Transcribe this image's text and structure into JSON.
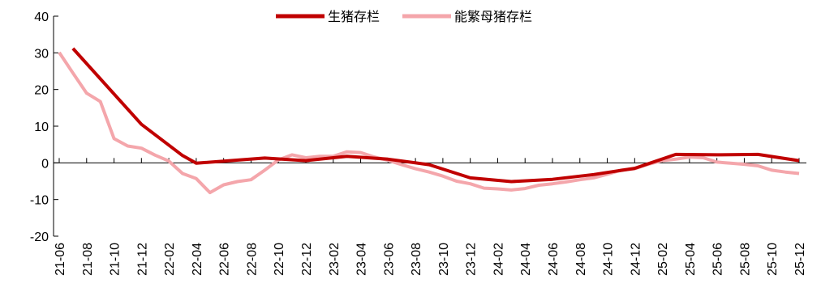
{
  "chart_data": {
    "type": "line",
    "title": "",
    "xlabel": "",
    "ylabel": "",
    "ylim": [
      -20,
      40
    ],
    "yticks": [
      -20,
      -10,
      0,
      10,
      20,
      30,
      40
    ],
    "x_tick_labels": [
      "21-06",
      "21-08",
      "21-10",
      "21-12",
      "22-02",
      "22-04",
      "22-06",
      "22-08",
      "22-10",
      "22-12",
      "23-02",
      "23-04",
      "23-06",
      "23-08",
      "23-10",
      "23-12",
      "24-02",
      "24-04",
      "24-06",
      "24-08",
      "24-10",
      "24-12",
      "25-02",
      "25-04",
      "25-06",
      "25-08",
      "25-10",
      "25-12"
    ],
    "x_start": "21-06",
    "x_end": "25-12",
    "legend_position": "top-center",
    "grid": false,
    "series": [
      {
        "name": "生猪存栏",
        "color": "#c00000",
        "points": [
          {
            "x": "21-07",
            "y": 31.2
          },
          {
            "x": "21-12",
            "y": 10.5
          },
          {
            "x": "22-03",
            "y": 2.0
          },
          {
            "x": "22-04",
            "y": -0.1
          },
          {
            "x": "22-09",
            "y": 1.3
          },
          {
            "x": "22-12",
            "y": 0.6
          },
          {
            "x": "23-03",
            "y": 1.8
          },
          {
            "x": "23-06",
            "y": 1.0
          },
          {
            "x": "23-09",
            "y": -0.5
          },
          {
            "x": "23-12",
            "y": -4.1
          },
          {
            "x": "24-03",
            "y": -5.1
          },
          {
            "x": "24-06",
            "y": -4.5
          },
          {
            "x": "24-09",
            "y": -3.2
          },
          {
            "x": "24-12",
            "y": -1.5
          },
          {
            "x": "25-03",
            "y": 2.3
          },
          {
            "x": "25-06",
            "y": 2.2
          },
          {
            "x": "25-09",
            "y": 2.3
          },
          {
            "x": "25-12",
            "y": 0.6
          }
        ]
      },
      {
        "name": "能繁母猪存栏",
        "color": "#f4a6ab",
        "points": [
          {
            "x": "21-06",
            "y": 30.1
          },
          {
            "x": "21-07",
            "y": 24.5
          },
          {
            "x": "21-08",
            "y": 19.0
          },
          {
            "x": "21-09",
            "y": 16.7
          },
          {
            "x": "21-10",
            "y": 6.6
          },
          {
            "x": "21-11",
            "y": 4.6
          },
          {
            "x": "21-12",
            "y": 4.0
          },
          {
            "x": "22-01",
            "y": 2.1
          },
          {
            "x": "22-02",
            "y": 0.5
          },
          {
            "x": "22-03",
            "y": -2.9
          },
          {
            "x": "22-04",
            "y": -4.3
          },
          {
            "x": "22-05",
            "y": -8.1
          },
          {
            "x": "22-06",
            "y": -6.0
          },
          {
            "x": "22-07",
            "y": -5.1
          },
          {
            "x": "22-08",
            "y": -4.6
          },
          {
            "x": "22-09",
            "y": -2.0
          },
          {
            "x": "22-10",
            "y": 0.8
          },
          {
            "x": "22-11",
            "y": 2.2
          },
          {
            "x": "22-12",
            "y": 1.4
          },
          {
            "x": "23-01",
            "y": 1.8
          },
          {
            "x": "23-02",
            "y": 1.8
          },
          {
            "x": "23-03",
            "y": 3.0
          },
          {
            "x": "23-04",
            "y": 2.8
          },
          {
            "x": "23-05",
            "y": 1.6
          },
          {
            "x": "23-06",
            "y": 0.7
          },
          {
            "x": "23-07",
            "y": -0.5
          },
          {
            "x": "23-08",
            "y": -1.6
          },
          {
            "x": "23-09",
            "y": -2.5
          },
          {
            "x": "23-10",
            "y": -3.6
          },
          {
            "x": "23-11",
            "y": -5.0
          },
          {
            "x": "23-12",
            "y": -5.7
          },
          {
            "x": "24-01",
            "y": -6.9
          },
          {
            "x": "24-02",
            "y": -7.1
          },
          {
            "x": "24-03",
            "y": -7.4
          },
          {
            "x": "24-04",
            "y": -7.0
          },
          {
            "x": "24-05",
            "y": -6.1
          },
          {
            "x": "24-06",
            "y": -5.7
          },
          {
            "x": "24-07",
            "y": -5.2
          },
          {
            "x": "24-08",
            "y": -4.6
          },
          {
            "x": "24-09",
            "y": -4.1
          },
          {
            "x": "24-10",
            "y": -3.1
          },
          {
            "x": "24-11",
            "y": -2.0
          },
          {
            "x": "24-12",
            "y": -1.6
          },
          {
            "x": "25-01",
            "y": -0.4
          },
          {
            "x": "25-02",
            "y": 0.6
          },
          {
            "x": "25-03",
            "y": 1.0
          },
          {
            "x": "25-04",
            "y": 1.6
          },
          {
            "x": "25-05",
            "y": 1.4
          },
          {
            "x": "25-06",
            "y": 0.2
          },
          {
            "x": "25-07",
            "y": -0.1
          },
          {
            "x": "25-08",
            "y": -0.4
          },
          {
            "x": "25-09",
            "y": -0.8
          },
          {
            "x": "25-10",
            "y": -2.0
          },
          {
            "x": "25-11",
            "y": -2.5
          },
          {
            "x": "25-12",
            "y": -2.9
          }
        ]
      }
    ]
  }
}
